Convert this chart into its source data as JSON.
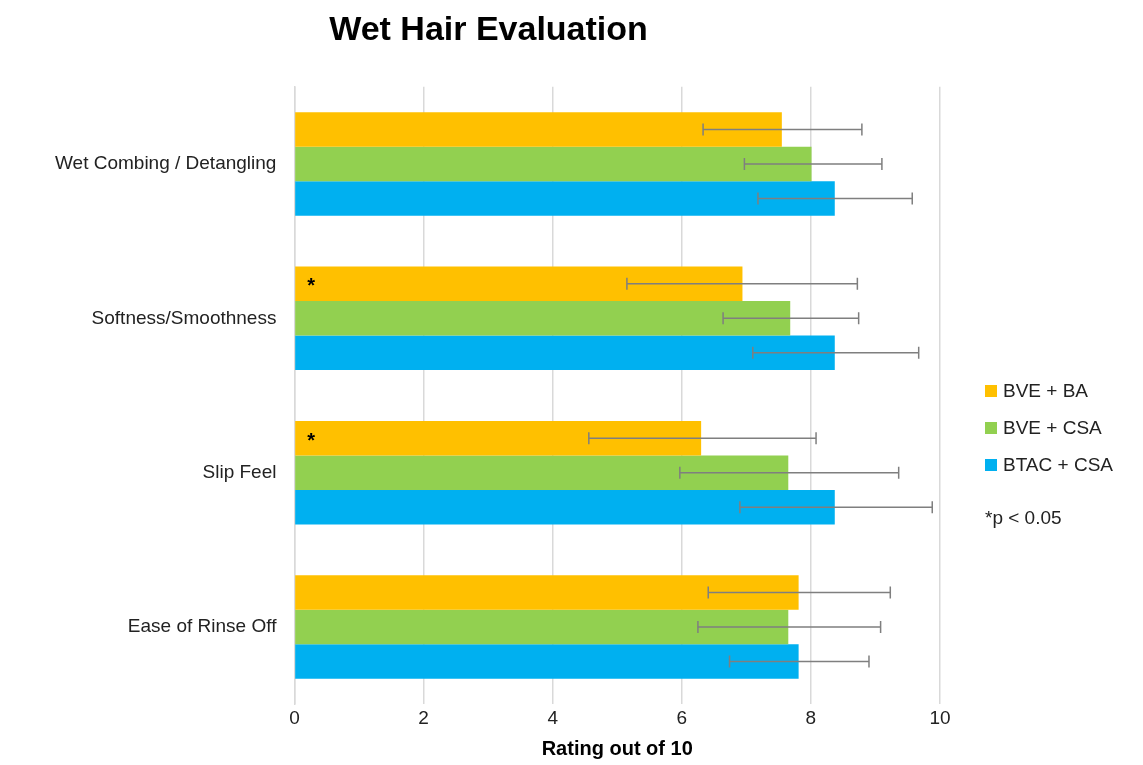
{
  "chart_data": {
    "type": "bar",
    "orientation": "horizontal",
    "title": "Wet Hair Evaluation",
    "xlabel": "Rating out of 10",
    "categories": [
      "Wet Combing / Detangling",
      "Softness/Smoothness",
      "Slip Feel",
      "Ease of Rinse Off"
    ],
    "series": [
      {
        "name": "BVE + BA",
        "color": "#ffc000",
        "values": [
          7.55,
          6.94,
          6.3,
          7.81
        ],
        "errors": [
          [
            6.33,
            8.79
          ],
          [
            5.15,
            8.72
          ],
          [
            4.56,
            8.08
          ],
          [
            6.41,
            9.23
          ]
        ],
        "value_labels": [
          null,
          "*",
          "*",
          null
        ]
      },
      {
        "name": "BVE + CSA",
        "color": "#92d050",
        "values": [
          8.01,
          7.68,
          7.65,
          7.65
        ],
        "errors": [
          [
            6.97,
            9.1
          ],
          [
            6.64,
            8.74
          ],
          [
            5.97,
            9.36
          ],
          [
            6.25,
            9.08
          ]
        ]
      },
      {
        "name": "BTAC + CSA",
        "color": "#00b0f0",
        "values": [
          8.37,
          8.37,
          8.37,
          7.81
        ],
        "errors": [
          [
            7.18,
            9.57
          ],
          [
            7.1,
            9.67
          ],
          [
            6.9,
            9.88
          ],
          [
            6.74,
            8.9
          ]
        ]
      }
    ],
    "xlim": [
      0,
      10
    ],
    "xticks": [
      0,
      2,
      4,
      6,
      8,
      10
    ],
    "grid": "x",
    "legend": "right",
    "annotations": [
      "*p < 0.05"
    ]
  }
}
